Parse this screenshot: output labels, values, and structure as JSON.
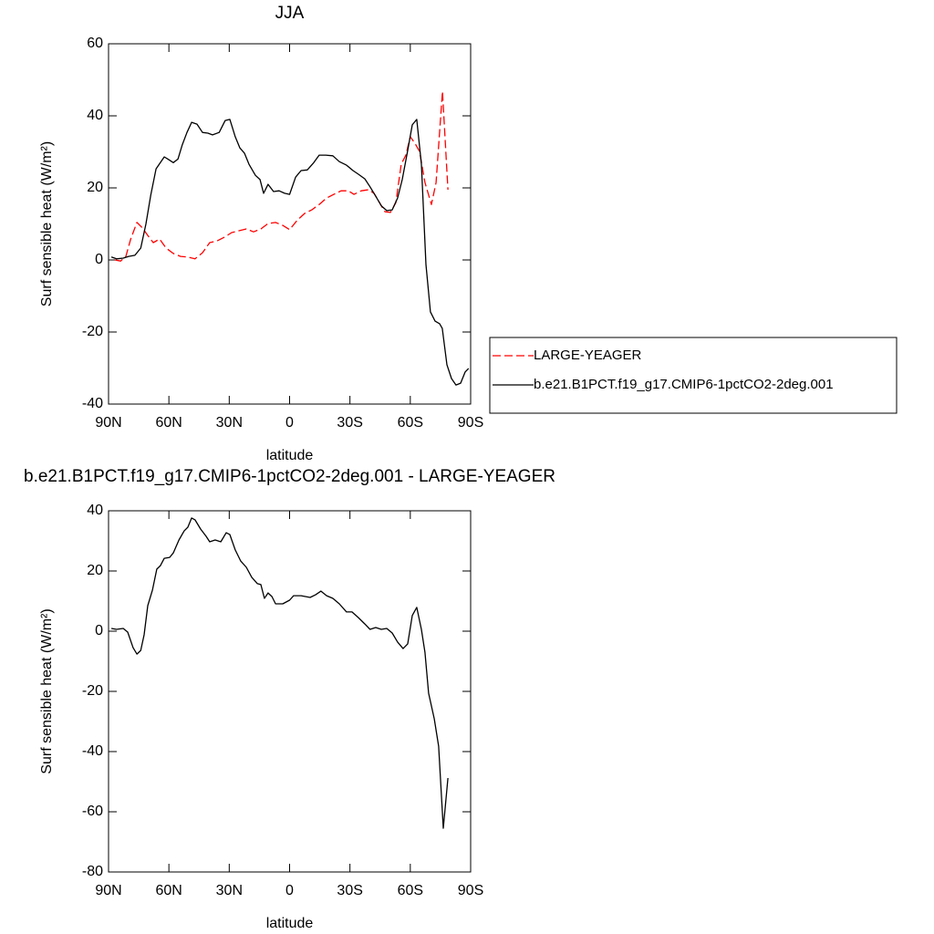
{
  "chart_data": [
    {
      "type": "line",
      "title": "JJA",
      "x_label": "latitude",
      "y_label": "Surf sensible heat (W/m²)",
      "xlim": [
        90,
        -90
      ],
      "xticks": [
        {
          "value": 90,
          "label": "90N"
        },
        {
          "value": 60,
          "label": "60N"
        },
        {
          "value": 30,
          "label": "30N"
        },
        0,
        {
          "value": -30,
          "label": "30S"
        },
        {
          "value": -60,
          "label": "60S"
        },
        {
          "value": -90,
          "label": "90S"
        }
      ],
      "ylim": [
        -40,
        60
      ],
      "yticks": [
        -40,
        -20,
        0,
        20,
        40,
        60
      ],
      "legend": "right",
      "series": [
        {
          "name": "LARGE-YEAGER",
          "color": "#ff0000",
          "dash": true,
          "x": [
            86.8,
            84,
            81.4,
            79,
            75.9,
            73.2,
            70.5,
            67.8,
            64.6,
            61.4,
            57.8,
            54.2,
            50.6,
            47,
            43.3,
            39.7,
            36,
            32.4,
            28.8,
            25.2,
            21.5,
            17.9,
            14.3,
            10.7,
            7,
            3.4,
            0,
            -3.9,
            -7.5,
            -11,
            -14.7,
            -18.4,
            -22,
            -25.6,
            -29.2,
            -32,
            -35.6,
            -39.2,
            -42,
            -44.7,
            -47.4,
            -50.1,
            -52.8,
            -55.5,
            -57.8,
            -60,
            -62.3,
            -64.6,
            -67.3,
            -70.5,
            -72.8,
            -76,
            -78.7
          ],
          "values": [
            0,
            -0.3,
            1,
            5.8,
            10.4,
            8.9,
            6.8,
            4.8,
            5.8,
            3.3,
            1.8,
            1,
            0.8,
            0.3,
            2,
            4.8,
            5.3,
            6.3,
            7.6,
            8.1,
            8.6,
            7.8,
            8.6,
            10.1,
            10.4,
            9.6,
            8.4,
            11.1,
            12.9,
            13.9,
            15.4,
            17.2,
            18.2,
            19.2,
            19.2,
            18.2,
            19.2,
            19.5,
            18.5,
            15.9,
            13.4,
            13.2,
            15.9,
            26.6,
            29.1,
            34.2,
            32.4,
            30.1,
            21.5,
            15.4,
            21.5,
            46.8,
            19.5
          ]
        },
        {
          "name": "b.e21.B1PCT.f19_g17.CMIP6-1pctCO2-2deg.001",
          "color": "#000000",
          "dash": false,
          "x": [
            88.6,
            86,
            82.7,
            80,
            76.9,
            74,
            71.4,
            69,
            66.4,
            62.3,
            60.5,
            57.8,
            55.5,
            53.3,
            51,
            48.7,
            46,
            43.3,
            40.6,
            38.3,
            35,
            32,
            29.7,
            27,
            24.7,
            22.4,
            20.2,
            17,
            14.7,
            12.9,
            10.7,
            8,
            5.2,
            2.5,
            0,
            -3,
            -5.7,
            -8.8,
            -12,
            -14.7,
            -18,
            -21.5,
            -24.7,
            -28.3,
            -31.5,
            -34.2,
            -37.4,
            -40,
            -42.8,
            -45.6,
            -48.3,
            -51,
            -53.7,
            -56,
            -58.7,
            -61,
            -63.2,
            -65.5,
            -67.8,
            -70,
            -72.3,
            -74.6,
            -75.9,
            -78.2,
            -80.5,
            -82.7,
            -85,
            -87.3,
            -89
          ],
          "values": [
            0.8,
            0.3,
            0.5,
            1,
            1.3,
            3.3,
            10,
            18,
            25.3,
            28.6,
            28,
            27,
            28,
            32,
            35.4,
            38.2,
            37.7,
            35.4,
            35.2,
            34.7,
            35.4,
            38.7,
            39,
            34.2,
            31.1,
            29.6,
            26.6,
            23.5,
            22.3,
            18.5,
            21,
            19,
            19.2,
            18.5,
            18.2,
            23,
            24.8,
            25,
            27,
            29.1,
            29.1,
            28.9,
            27.3,
            26.3,
            24.8,
            23.8,
            22.5,
            20.3,
            17.7,
            15,
            13.7,
            13.9,
            17.2,
            22.3,
            30.4,
            37.5,
            39,
            26.6,
            -1.3,
            -14.4,
            -17,
            -17.7,
            -19,
            -29.1,
            -32.9,
            -34.7,
            -34.2,
            -31.1,
            -30.1
          ]
        }
      ]
    },
    {
      "type": "line",
      "title": "b.e21.B1PCT.f19_g17.CMIP6-1pctCO2-2deg.001 - LARGE-YEAGER",
      "x_label": "latitude",
      "y_label": "Surf sensible heat (W/m²)",
      "xlim": [
        90,
        -90
      ],
      "xticks": [
        {
          "value": 90,
          "label": "90N"
        },
        {
          "value": 60,
          "label": "60N"
        },
        {
          "value": 30,
          "label": "30N"
        },
        0,
        {
          "value": -30,
          "label": "30S"
        },
        {
          "value": -60,
          "label": "60S"
        },
        {
          "value": -90,
          "label": "90S"
        }
      ],
      "ylim": [
        -80,
        40
      ],
      "yticks": [
        -80,
        -60,
        -40,
        -20,
        0,
        20,
        40
      ],
      "series": [
        {
          "color": "#000000",
          "dash": false,
          "x": [
            88.6,
            86,
            82.7,
            80.5,
            77.8,
            75.9,
            74,
            72.3,
            70.5,
            68.2,
            66,
            64.2,
            62.3,
            59.6,
            57.8,
            55,
            52.4,
            50.6,
            48.7,
            47,
            44.2,
            41.5,
            39.7,
            37,
            34.2,
            31.5,
            29.7,
            27,
            24.3,
            21.5,
            18.8,
            16,
            14.3,
            12.5,
            10.7,
            8.8,
            7,
            3.4,
            0,
            -2,
            -5.7,
            -10.2,
            -12.9,
            -15.6,
            -18.4,
            -21.5,
            -24.7,
            -28.3,
            -31,
            -34.2,
            -37.4,
            -40,
            -42.8,
            -45.6,
            -48.3,
            -51,
            -53.7,
            -56.4,
            -58.7,
            -61,
            -63.2,
            -65.5,
            -67.3,
            -69.1,
            -71.9,
            -74.1,
            -76.4,
            -78.7
          ],
          "values": [
            0.9,
            0.6,
            0.9,
            -0.3,
            -5.5,
            -7.6,
            -6.4,
            -1.2,
            8.5,
            13.6,
            20.6,
            21.8,
            24.2,
            24.5,
            26,
            30.3,
            33.3,
            34.5,
            37.6,
            37,
            33.9,
            31.5,
            29.7,
            30.3,
            29.7,
            32.7,
            32.1,
            27,
            23.3,
            21.2,
            17.9,
            15.8,
            15.5,
            10.9,
            12.7,
            11.5,
            9.1,
            9.1,
            10.3,
            11.8,
            11.8,
            11.2,
            12.1,
            13.3,
            11.8,
            10.9,
            9.1,
            6.4,
            6.4,
            4.5,
            2.4,
            0.6,
            1.2,
            0.6,
            0.9,
            -0.6,
            -3.6,
            -5.8,
            -4.2,
            5.2,
            7.9,
            0.6,
            -7,
            -20.6,
            -29.1,
            -38.2,
            -65.5,
            -48.8
          ]
        }
      ]
    }
  ]
}
